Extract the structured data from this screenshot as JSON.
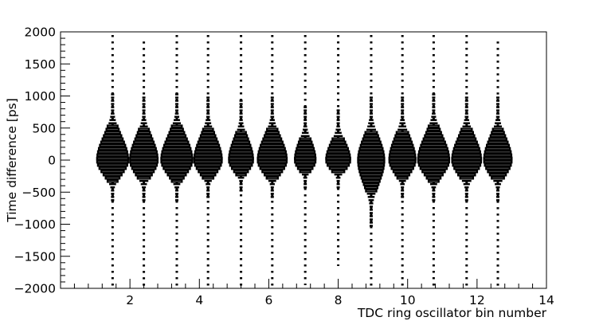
{
  "chart_data": {
    "type": "violin",
    "xlabel": "TDC ring oscillator bin number",
    "ylabel": "Time difference [ps]",
    "xlim": [
      0,
      14
    ],
    "ylim": [
      -2000,
      2000
    ],
    "x_ticks": [
      {
        "value": 2,
        "label": "2"
      },
      {
        "value": 4,
        "label": "4"
      },
      {
        "value": 6,
        "label": "6"
      },
      {
        "value": 8,
        "label": "8"
      },
      {
        "value": 10,
        "label": "10"
      },
      {
        "value": 12,
        "label": "12"
      },
      {
        "value": 14,
        "label": "14"
      }
    ],
    "y_ticks": [
      {
        "value": 2000,
        "label": "2000"
      },
      {
        "value": 1500,
        "label": "1500"
      },
      {
        "value": 1000,
        "label": "1000"
      },
      {
        "value": 500,
        "label": "500"
      },
      {
        "value": 0,
        "label": "0"
      },
      {
        "value": -500,
        "label": "−500"
      },
      {
        "value": -1000,
        "label": "−1000"
      },
      {
        "value": -1500,
        "label": "−1500"
      },
      {
        "value": -2000,
        "label": "−2000"
      }
    ],
    "distributions": [
      {
        "bin": 1.5,
        "x": 1.5,
        "halfwidth": 0.45,
        "dot_top": 1950,
        "dot_bottom": -2000,
        "box_top": 1050,
        "box_bottom": -650
      },
      {
        "bin": 2.4,
        "x": 2.4,
        "halfwidth": 0.4,
        "dot_top": 1850,
        "dot_bottom": -2000,
        "box_top": 1000,
        "box_bottom": -650
      },
      {
        "bin": 3.35,
        "x": 3.35,
        "halfwidth": 0.45,
        "dot_top": 1950,
        "dot_bottom": -2000,
        "box_top": 1050,
        "box_bottom": -650
      },
      {
        "bin": 4.25,
        "x": 4.25,
        "halfwidth": 0.4,
        "dot_top": 1950,
        "dot_bottom": -2000,
        "box_top": 1000,
        "box_bottom": -600
      },
      {
        "bin": 5.2,
        "x": 5.2,
        "halfwidth": 0.35,
        "dot_top": 1950,
        "dot_bottom": -2000,
        "box_top": 950,
        "box_bottom": -500
      },
      {
        "bin": 6.1,
        "x": 6.1,
        "halfwidth": 0.42,
        "dot_top": 1950,
        "dot_bottom": -2000,
        "box_top": 1000,
        "box_bottom": -600
      },
      {
        "bin": 7.05,
        "x": 7.05,
        "halfwidth": 0.3,
        "dot_top": 1950,
        "dot_bottom": -1950,
        "box_top": 850,
        "box_bottom": -450
      },
      {
        "bin": 8.0,
        "x": 8.0,
        "halfwidth": 0.35,
        "dot_top": 1950,
        "dot_bottom": -1650,
        "box_top": 800,
        "box_bottom": -450
      },
      {
        "bin": 8.95,
        "x": 8.95,
        "halfwidth": 0.38,
        "dot_top": 1950,
        "dot_bottom": -2000,
        "box_top": 1000,
        "box_bottom": -1050
      },
      {
        "bin": 9.85,
        "x": 9.85,
        "halfwidth": 0.38,
        "dot_top": 1950,
        "dot_bottom": -2000,
        "box_top": 1000,
        "box_bottom": -600
      },
      {
        "bin": 10.75,
        "x": 10.75,
        "halfwidth": 0.45,
        "dot_top": 1950,
        "dot_bottom": -2000,
        "box_top": 1050,
        "box_bottom": -650
      },
      {
        "bin": 11.7,
        "x": 11.7,
        "halfwidth": 0.42,
        "dot_top": 1950,
        "dot_bottom": -2000,
        "box_top": 1000,
        "box_bottom": -650
      },
      {
        "bin": 12.6,
        "x": 12.6,
        "halfwidth": 0.4,
        "dot_top": 1850,
        "dot_bottom": -2000,
        "box_top": 1000,
        "box_bottom": -650
      }
    ],
    "grid": false,
    "legend": "none",
    "colors": {
      "line": "#000000",
      "fill": "#ffffff"
    }
  }
}
